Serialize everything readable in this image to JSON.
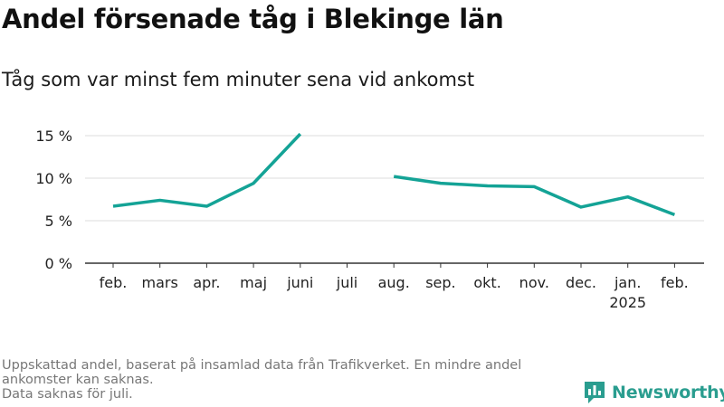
{
  "title": "Andel försenade tåg i Blekinge län",
  "subtitle": "Tåg som var minst fem minuter sena vid ankomst",
  "footnote": {
    "line1": "Uppskattad andel, baserat på insamlad data från Trafikverket. En mindre andel ankomster kan saknas.",
    "line2": "Data saknas för juli."
  },
  "brand": {
    "name": "Newsworthy",
    "color": "#2a9d8f"
  },
  "chart_data": {
    "type": "line",
    "title": "Andel försenade tåg i Blekinge län",
    "subtitle": "Tåg som var minst fem minuter sena vid ankomst",
    "xlabel": "",
    "ylabel": "",
    "categories": [
      "feb.",
      "mars",
      "apr.",
      "maj",
      "juni",
      "juli",
      "aug.",
      "sep.",
      "okt.",
      "nov.",
      "dec.",
      "jan.",
      "feb."
    ],
    "category_sublabels": [
      "",
      "",
      "",
      "",
      "",
      "",
      "",
      "",
      "",
      "",
      "",
      "2025",
      ""
    ],
    "series": [
      {
        "color": "#14a396",
        "values": [
          6.7,
          7.4,
          6.7,
          9.4,
          15.2,
          null,
          10.2,
          9.4,
          9.1,
          9.0,
          6.6,
          7.8,
          5.7
        ]
      }
    ],
    "yticks": [
      0,
      5,
      10,
      15
    ],
    "ytick_labels": [
      "0 %",
      "5 %",
      "10 %",
      "15 %"
    ],
    "ylim": [
      0,
      15
    ],
    "grid": true,
    "legend": "none"
  }
}
